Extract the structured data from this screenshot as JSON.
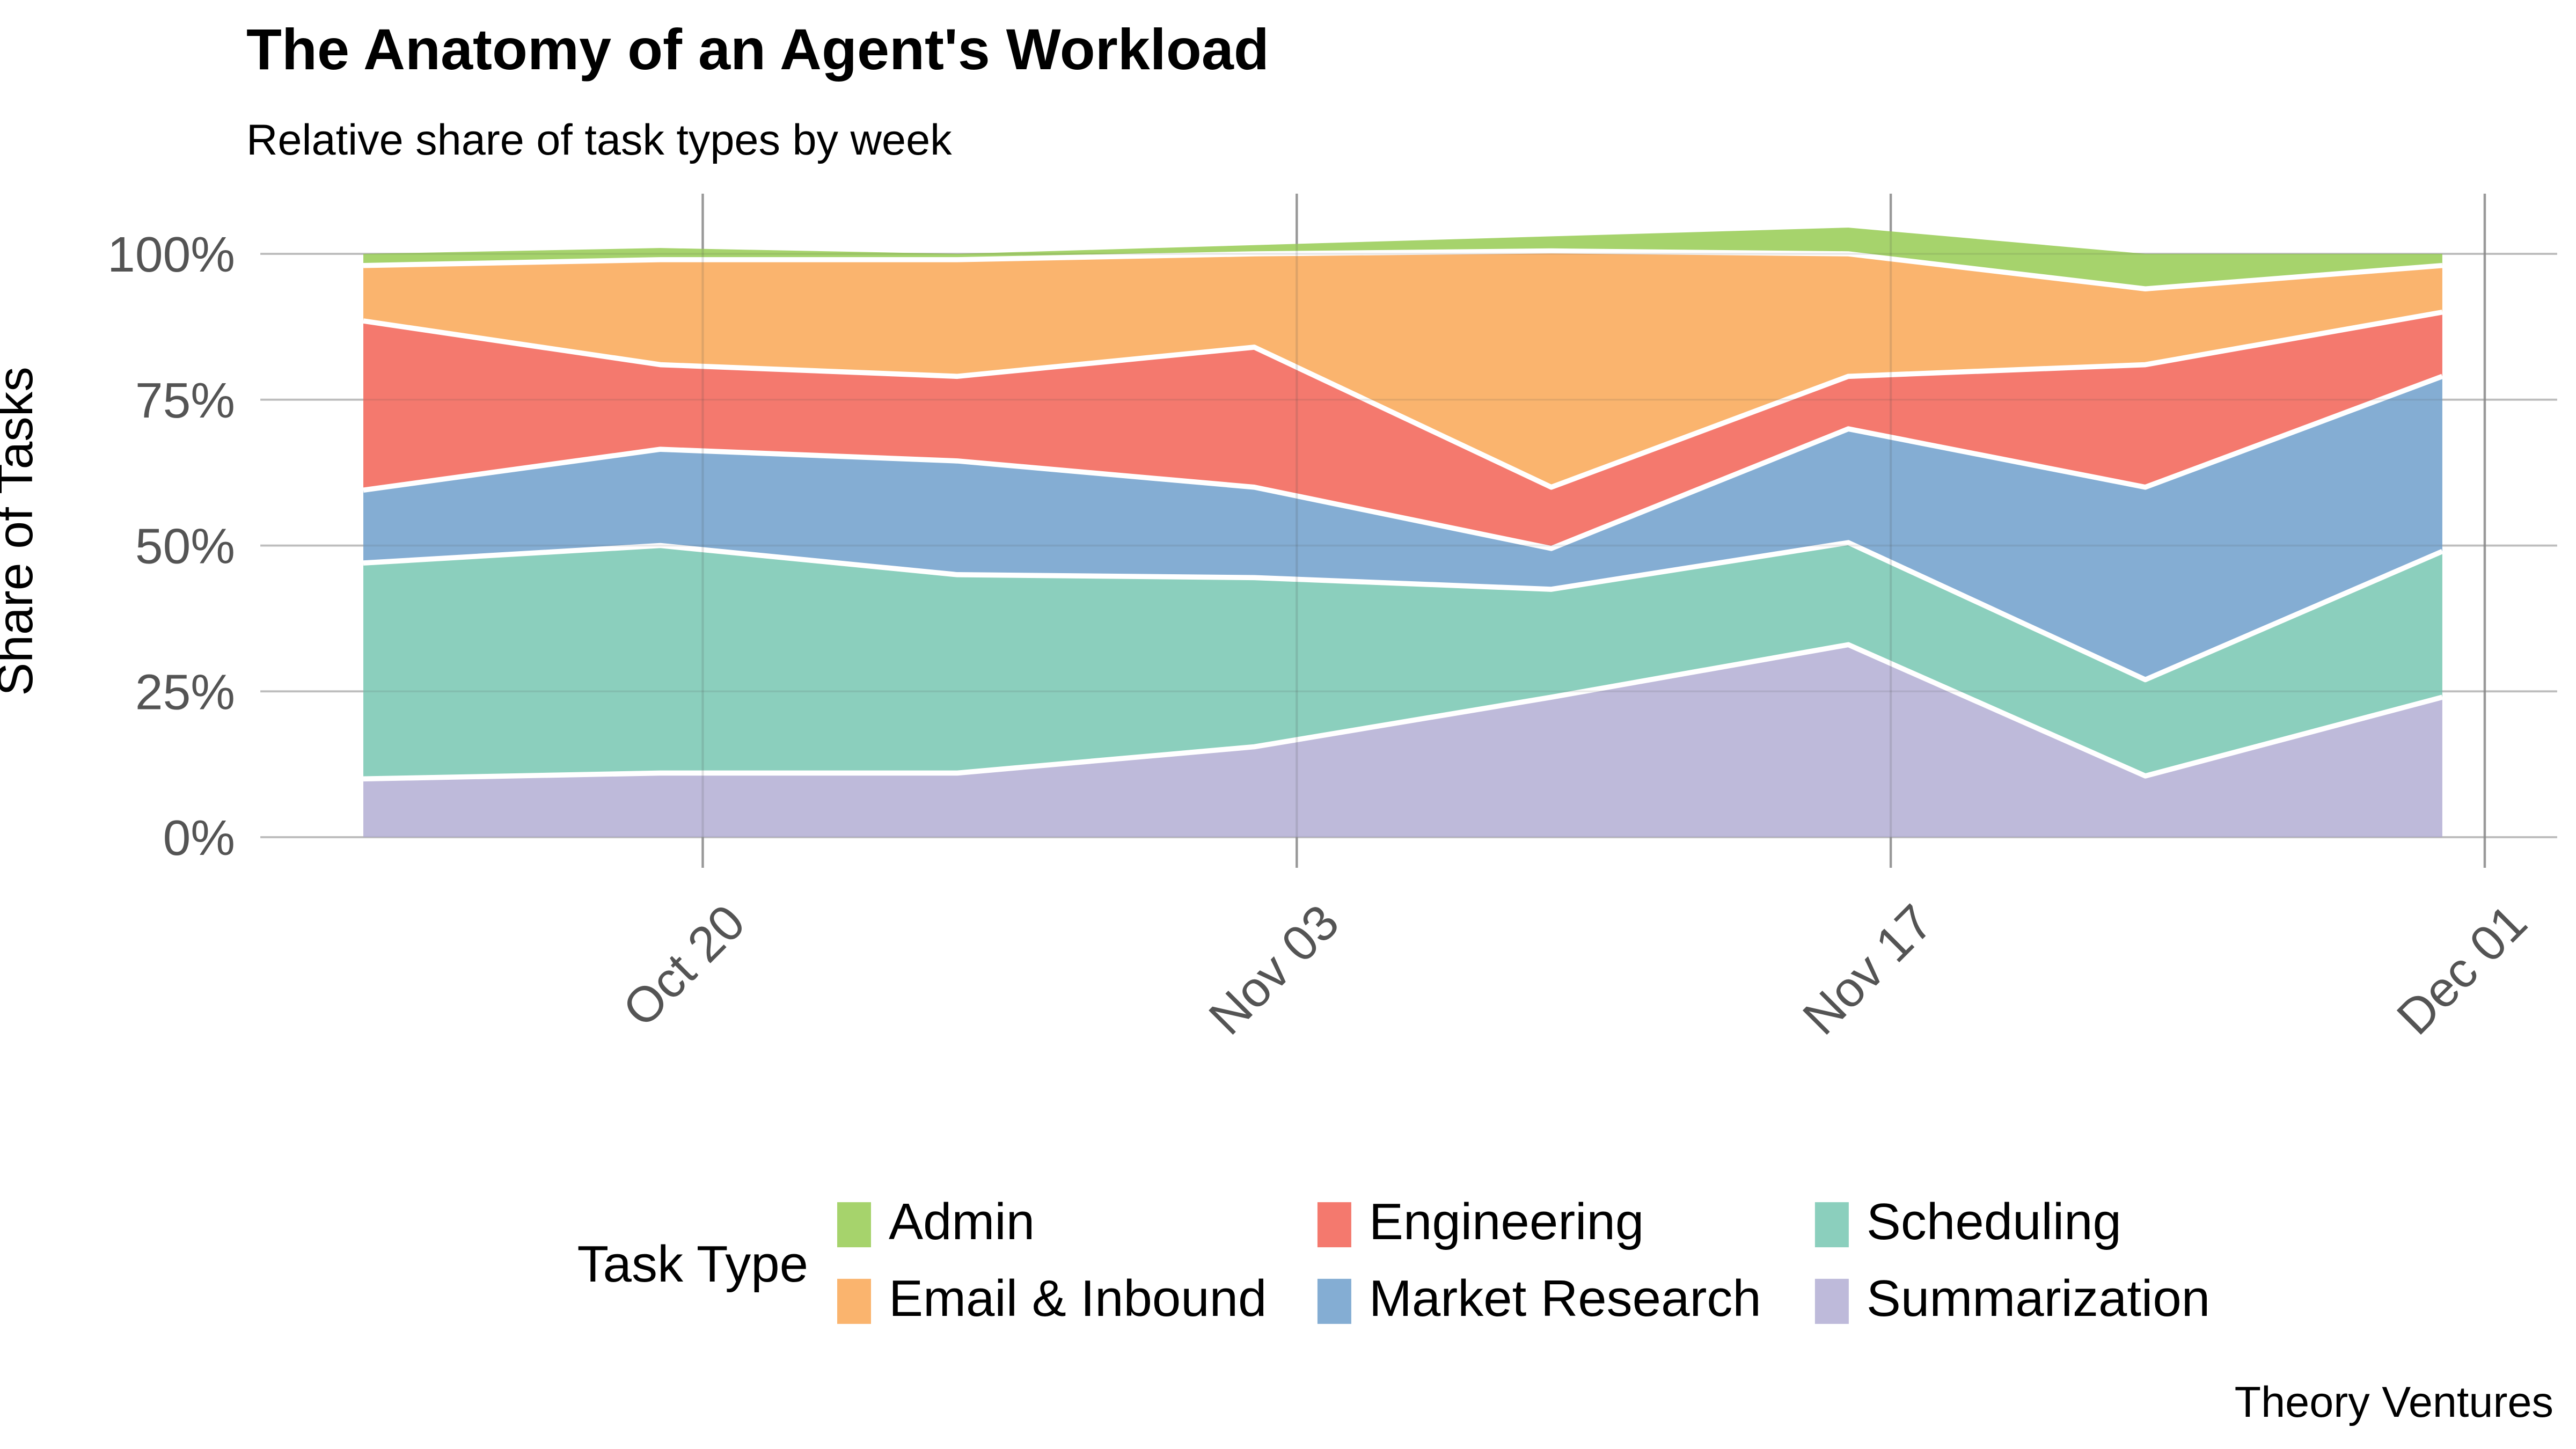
{
  "title": "The Anatomy of an Agent's Workload",
  "subtitle": "Relative share of task types by week",
  "source": "Theory Ventures",
  "y_axis": {
    "label": "Share of Tasks",
    "ticks": [
      {
        "label": "0%",
        "value": 0
      },
      {
        "label": "25%",
        "value": 25
      },
      {
        "label": "50%",
        "value": 50
      },
      {
        "label": "75%",
        "value": 75
      },
      {
        "label": "100%",
        "value": 100
      }
    ]
  },
  "x_axis": {
    "ticks": [
      {
        "label": "Oct 20",
        "day": 8
      },
      {
        "label": "Nov 03",
        "day": 22
      },
      {
        "label": "Nov 17",
        "day": 36
      },
      {
        "label": "Dec 01",
        "day": 50
      }
    ]
  },
  "legend": {
    "title": "Task Type",
    "items": [
      {
        "label": "Admin",
        "color": "#a6d36c"
      },
      {
        "label": "Email & Inbound",
        "color": "#fab46e"
      },
      {
        "label": "Engineering",
        "color": "#f4796e"
      },
      {
        "label": "Market Research",
        "color": "#84add3"
      },
      {
        "label": "Scheduling",
        "color": "#8bcfbd"
      },
      {
        "label": "Summarization",
        "color": "#bebada"
      }
    ]
  },
  "chart_data": {
    "type": "area",
    "stacked": true,
    "title": "The Anatomy of an Agent's Workload",
    "subtitle": "Relative share of task types by week",
    "xlabel": "",
    "ylabel": "Share of Tasks",
    "ylim": [
      0,
      100
    ],
    "grid": true,
    "legend_position": "bottom",
    "units": "percent share of tasks",
    "categories": [
      "Oct 12",
      "Oct 19",
      "Oct 26",
      "Nov 02",
      "Nov 09",
      "Nov 16",
      "Nov 23",
      "Nov 30"
    ],
    "x_days": [
      0,
      7,
      14,
      21,
      28,
      35,
      42,
      49
    ],
    "series": [
      {
        "name": "Summarization",
        "color": "#bebada",
        "values": [
          10,
          11,
          11,
          15.5,
          24,
          33,
          10.5,
          24
        ]
      },
      {
        "name": "Scheduling",
        "color": "#8bcfbd",
        "values": [
          37,
          39,
          34,
          29,
          18.5,
          17.5,
          16.5,
          25
        ]
      },
      {
        "name": "Market Research",
        "color": "#84add3",
        "values": [
          12.5,
          16.5,
          19.5,
          15.5,
          7,
          19.5,
          33,
          30
        ]
      },
      {
        "name": "Engineering",
        "color": "#f4796e",
        "values": [
          29,
          14.5,
          14.5,
          24,
          10.5,
          9,
          21,
          11
        ]
      },
      {
        "name": "Email & Inbound",
        "color": "#fab46e",
        "values": [
          9.5,
          18,
          20,
          16,
          40.5,
          21,
          13,
          8
        ]
      },
      {
        "name": "Admin",
        "color": "#a6d36c",
        "values": [
          2,
          2,
          1,
          1.5,
          2.5,
          4.5,
          6,
          2
        ]
      }
    ]
  }
}
